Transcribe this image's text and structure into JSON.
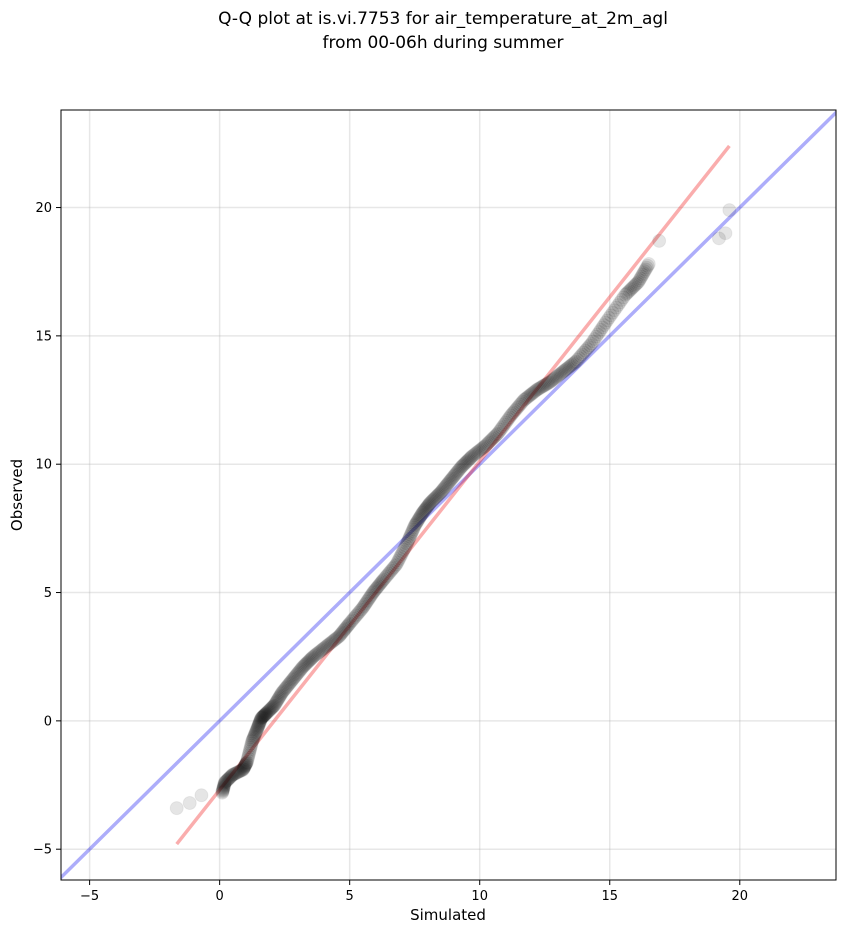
{
  "chart_data": {
    "type": "scatter",
    "title_line1": "Q-Q plot at is.vi.7753 for air_temperature_at_2m_agl",
    "title_line2": "from 00-06h during summer",
    "xlabel": "Simulated",
    "ylabel": "Observed",
    "xlim": [
      -6.1,
      23.7
    ],
    "ylim": [
      -6.2,
      23.8
    ],
    "xticks": [
      -5,
      0,
      5,
      10,
      15,
      20
    ],
    "yticks": [
      -5,
      0,
      5,
      10,
      15,
      20
    ],
    "grid": true,
    "reference_line": {
      "name": "1:1 line",
      "color": "#0000ee",
      "opacity": 0.32,
      "from": [
        -6.1,
        -6.1
      ],
      "to": [
        23.7,
        23.7
      ]
    },
    "fit_line": {
      "name": "quantile fit",
      "color": "#ee0000",
      "opacity": 0.32,
      "from": [
        -1.65,
        -4.8
      ],
      "to": [
        19.6,
        22.4
      ]
    },
    "quantiles": {
      "x": [
        -1.65,
        -1.15,
        -0.7,
        0.1,
        0.2,
        0.5,
        0.9,
        1.05,
        1.25,
        1.45,
        1.6,
        1.8,
        2.1,
        2.4,
        2.8,
        3.2,
        3.6,
        4.1,
        4.6,
        5.0,
        5.5,
        5.9,
        6.3,
        6.8,
        7.2,
        7.5,
        7.8,
        8.1,
        8.5,
        8.9,
        9.3,
        9.7,
        10.2,
        10.7,
        11.2,
        11.7,
        12.2,
        12.7,
        13.2,
        13.7,
        14.3,
        14.9,
        15.6,
        16.1,
        16.5,
        16.9,
        19.2,
        19.45,
        19.6
      ],
      "y": [
        -3.4,
        -3.2,
        -2.9,
        -2.8,
        -2.4,
        -2.1,
        -1.9,
        -1.6,
        -0.8,
        -0.3,
        0.1,
        0.3,
        0.6,
        1.1,
        1.6,
        2.1,
        2.5,
        2.9,
        3.3,
        3.8,
        4.4,
        5.0,
        5.5,
        6.1,
        6.9,
        7.6,
        8.1,
        8.5,
        8.9,
        9.4,
        9.9,
        10.3,
        10.7,
        11.2,
        11.9,
        12.5,
        12.9,
        13.2,
        13.6,
        14.0,
        14.7,
        15.6,
        16.6,
        17.1,
        17.8,
        18.7,
        18.8,
        19.0,
        19.9
      ]
    },
    "marker_color": "#000000",
    "marker_opacity": 0.1
  }
}
